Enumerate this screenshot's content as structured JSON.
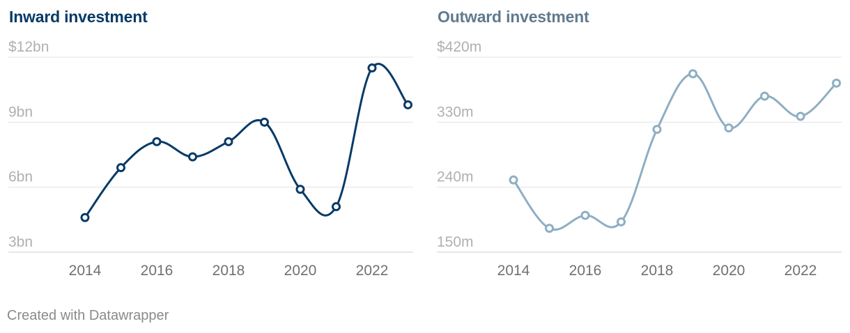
{
  "footer": {
    "credit": "Created with Datawrapper"
  },
  "chart_data": [
    {
      "type": "line",
      "title": "Inward investment",
      "color": "#073a66",
      "x": [
        2014,
        2015,
        2016,
        2017,
        2018,
        2019,
        2020,
        2021,
        2022,
        2023
      ],
      "values": [
        4.6,
        6.9,
        8.1,
        7.4,
        8.1,
        9.0,
        5.9,
        5.1,
        11.5,
        9.8
      ],
      "ylim": [
        3,
        12
      ],
      "yticks": [
        3,
        6,
        9,
        12
      ],
      "ytick_labels": [
        "3bn",
        "6bn",
        "9bn",
        "$12bn"
      ],
      "xticks": [
        2014,
        2016,
        2018,
        2020,
        2022
      ],
      "xtick_labels": [
        "2014",
        "2016",
        "2018",
        "2020",
        "2022"
      ],
      "unit": "$bn"
    },
    {
      "type": "line",
      "title": "Outward investment",
      "color": "#8eaec3",
      "x": [
        2014,
        2015,
        2016,
        2017,
        2018,
        2019,
        2020,
        2021,
        2022,
        2023
      ],
      "values": [
        250,
        183,
        201,
        192,
        320,
        397,
        322,
        366,
        338,
        384
      ],
      "ylim": [
        150,
        420
      ],
      "yticks": [
        150,
        240,
        330,
        420
      ],
      "ytick_labels": [
        "150m",
        "240m",
        "330m",
        "$420m"
      ],
      "xticks": [
        2014,
        2016,
        2018,
        2020,
        2022
      ],
      "xtick_labels": [
        "2014",
        "2016",
        "2018",
        "2020",
        "2022"
      ],
      "unit": "$m"
    }
  ]
}
